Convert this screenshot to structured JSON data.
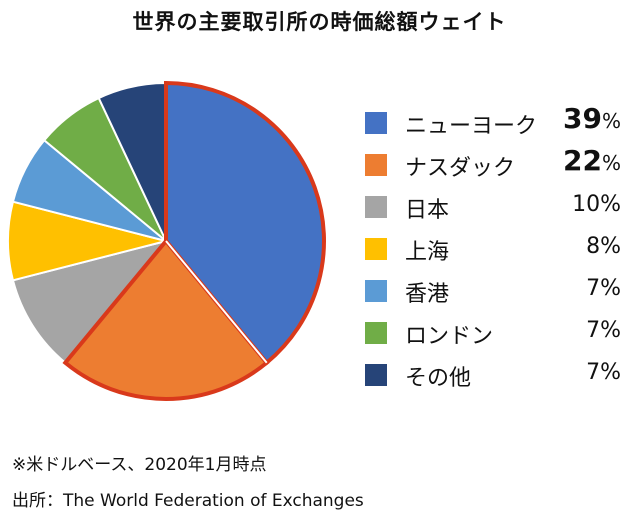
{
  "chart_data": {
    "type": "pie",
    "title": "世界の主要取引所の時価総額ウェイト",
    "series": [
      {
        "label": "ニューヨーク",
        "value": 39,
        "display": "39",
        "unit": "%",
        "color": "#4472C4",
        "emphasis": true
      },
      {
        "label": "ナスダック",
        "value": 22,
        "display": "22",
        "unit": "%",
        "color": "#ED7D31",
        "emphasis": true
      },
      {
        "label": "日本",
        "value": 10,
        "display": "10%",
        "color": "#A5A5A5",
        "emphasis": false
      },
      {
        "label": "上海",
        "value": 8,
        "display": "8%",
        "color": "#FFC000",
        "emphasis": false
      },
      {
        "label": "香港",
        "value": 7,
        "display": "7%",
        "color": "#5B9BD5",
        "emphasis": false
      },
      {
        "label": "ロンドン",
        "value": 7,
        "display": "7%",
        "color": "#70AD47",
        "emphasis": false
      },
      {
        "label": "その他",
        "value": 7,
        "display": "7%",
        "color": "#264478",
        "emphasis": false
      }
    ],
    "highlight_border_color": "#D9391B",
    "legend_position": "right",
    "note": "※米ドルベース、2020年1月時点",
    "source": "出所：The World Federation of Exchanges"
  }
}
